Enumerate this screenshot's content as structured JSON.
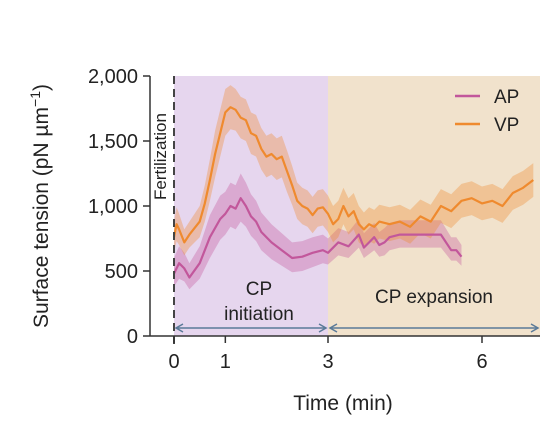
{
  "chart_data": {
    "type": "line",
    "title": "",
    "xlabel": "Time (min)",
    "ylabel": "Surface tension (pN µm",
    "ylabel_superscript": "−1",
    "ylabel_close": ")",
    "xlim": [
      -0.6,
      7.0
    ],
    "ylim": [
      0,
      2000
    ],
    "x_ticks": [
      0,
      1,
      3,
      6
    ],
    "x_tick_labels": [
      "0",
      "1",
      "3",
      "6"
    ],
    "y_ticks": [
      0,
      500,
      1000,
      1500,
      2000
    ],
    "y_tick_labels": [
      "0",
      "500",
      "1,000",
      "1,500",
      "2,000"
    ],
    "grid": false,
    "legend_position": "top-right",
    "colors": {
      "AP": "#c2579b",
      "VP": "#ef8a2e",
      "initiation_region": "#e6d6ee",
      "expansion_region": "#f1e2cc",
      "arrow": "#5a7a98",
      "fertilization_line": "#444444"
    },
    "annotations": {
      "fertilization": "Fertilization",
      "cp_initiation_line1": "CP",
      "cp_initiation_line2": "initiation",
      "cp_expansion": "CP expansion"
    },
    "regions": [
      {
        "name": "CP initiation",
        "x_start": 0,
        "x_end": 3
      },
      {
        "name": "CP expansion",
        "x_start": 3,
        "x_end": 7
      }
    ],
    "series": [
      {
        "name": "AP",
        "x": [
          0.0,
          0.1,
          0.2,
          0.3,
          0.5,
          0.7,
          0.9,
          1.0,
          1.1,
          1.2,
          1.3,
          1.4,
          1.5,
          1.6,
          1.7,
          1.9,
          2.1,
          2.3,
          2.5,
          2.7,
          2.9,
          3.0,
          3.2,
          3.4,
          3.6,
          3.7,
          3.8,
          3.9,
          4.0,
          4.1,
          4.2,
          4.4,
          4.6,
          4.8,
          5.0,
          5.2,
          5.4,
          5.5,
          5.6
        ],
        "y": [
          480,
          560,
          520,
          450,
          560,
          760,
          900,
          940,
          1000,
          980,
          1060,
          1000,
          920,
          880,
          800,
          720,
          660,
          600,
          610,
          640,
          660,
          640,
          720,
          690,
          780,
          680,
          720,
          760,
          700,
          720,
          760,
          780,
          780,
          780,
          780,
          780,
          660,
          660,
          610
        ],
        "lower": [
          380,
          440,
          420,
          360,
          440,
          600,
          740,
          780,
          840,
          820,
          880,
          840,
          770,
          730,
          660,
          590,
          540,
          490,
          500,
          530,
          560,
          550,
          620,
          600,
          680,
          600,
          630,
          660,
          610,
          620,
          660,
          680,
          680,
          680,
          680,
          680,
          580,
          580,
          540
        ],
        "upper": [
          600,
          690,
          640,
          560,
          690,
          930,
          1080,
          1110,
          1180,
          1160,
          1250,
          1180,
          1090,
          1040,
          950,
          860,
          790,
          720,
          730,
          760,
          780,
          750,
          830,
          800,
          900,
          790,
          830,
          870,
          800,
          830,
          870,
          890,
          890,
          890,
          890,
          890,
          760,
          760,
          700
        ]
      },
      {
        "name": "VP",
        "x": [
          0.0,
          0.05,
          0.1,
          0.2,
          0.3,
          0.5,
          0.6,
          0.7,
          0.8,
          0.9,
          1.0,
          1.1,
          1.2,
          1.3,
          1.4,
          1.5,
          1.6,
          1.7,
          1.8,
          1.9,
          2.0,
          2.1,
          2.2,
          2.3,
          2.4,
          2.5,
          2.6,
          2.7,
          2.8,
          2.9,
          3.0,
          3.1,
          3.2,
          3.3,
          3.4,
          3.5,
          3.6,
          3.7,
          3.8,
          3.9,
          4.0,
          4.2,
          4.4,
          4.6,
          4.8,
          5.0,
          5.2,
          5.4,
          5.6,
          5.8,
          6.0,
          6.2,
          6.4,
          6.6,
          6.8,
          7.0
        ],
        "y": [
          760,
          860,
          820,
          720,
          780,
          880,
          1020,
          1200,
          1400,
          1560,
          1720,
          1760,
          1740,
          1680,
          1660,
          1560,
          1540,
          1440,
          1380,
          1400,
          1360,
          1380,
          1270,
          1160,
          1040,
          1000,
          980,
          930,
          980,
          990,
          940,
          860,
          900,
          1000,
          920,
          960,
          860,
          820,
          860,
          840,
          880,
          860,
          880,
          840,
          920,
          880,
          1000,
          960,
          1040,
          1060,
          1020,
          1040,
          1000,
          1100,
          1140,
          1200
        ],
        "lower": [
          640,
          730,
          700,
          620,
          680,
          760,
          880,
          1040,
          1220,
          1380,
          1540,
          1590,
          1580,
          1520,
          1500,
          1400,
          1380,
          1280,
          1220,
          1240,
          1200,
          1220,
          1110,
          1010,
          900,
          860,
          840,
          790,
          840,
          850,
          800,
          720,
          760,
          860,
          780,
          820,
          720,
          690,
          730,
          710,
          750,
          730,
          750,
          710,
          790,
          750,
          870,
          830,
          910,
          930,
          890,
          910,
          870,
          970,
          1010,
          1070
        ],
        "upper": [
          880,
          990,
          940,
          820,
          880,
          1000,
          1160,
          1360,
          1580,
          1740,
          1900,
          1930,
          1900,
          1840,
          1820,
          1720,
          1700,
          1600,
          1540,
          1560,
          1520,
          1540,
          1430,
          1310,
          1180,
          1140,
          1120,
          1070,
          1120,
          1130,
          1080,
          1000,
          1040,
          1140,
          1060,
          1100,
          1000,
          950,
          990,
          970,
          1010,
          990,
          1010,
          970,
          1050,
          1010,
          1130,
          1090,
          1170,
          1190,
          1150,
          1170,
          1130,
          1230,
          1270,
          1330
        ]
      }
    ]
  }
}
